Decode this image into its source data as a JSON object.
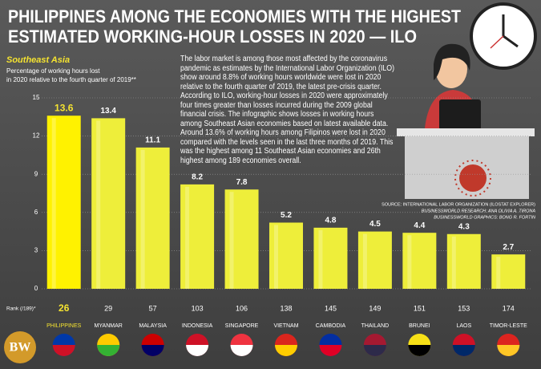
{
  "chart_data": {
    "type": "bar",
    "title": [
      "PHILIPPINES AMONG THE ECONOMIES WITH THE HIGHEST",
      "ESTIMATED WORKING-HOUR LOSSES IN 2020  — ILO"
    ],
    "subtitle": "Southeast Asia",
    "y_label": [
      "Percentage of working hours lost",
      "in 2020 relative to the fourth quarter of 2019**"
    ],
    "description": "The labor market is among those most affected by the coronavirus pandemic as estimates by the International Labor Organization (ILO) show around 8.8% of working hours worldwide were lost in 2020 relative to the fourth quarter of 2019, the latest pre-crisis quarter. According to ILO, working-hour losses in 2020 were approximately four times greater than losses incurred during the 2009 global financial crisis. The infographic shows losses in working hours among Southeast Asian economies based on latest available data. Around 13.6% of working hours among Filipinos were lost in 2020 compared with the levels seen in the last three months of 2019. This was the highest among 11 Southeast Asian economies and 26th highest among 189 economies overall.",
    "sources": [
      "SOURCE: INTERNATIONAL LABOR ORGANIZATION (ILOSTAT EXPLORER)",
      "BUSINESSWORLD RESEARCH: ANA OLIVIA A. TIRONA",
      "BUSINESSWORLD GRAPHICS: BONG R. FORTIN"
    ],
    "logo": "BW",
    "rank_label": "Rank (/189)*",
    "categories": [
      "PHILIPPINES",
      "MYANMAR",
      "MALAYSIA",
      "INDONESIA",
      "SINGAPORE",
      "VIETNAM",
      "CAMBODIA",
      "THAILAND",
      "BRUNEI",
      "LAOS",
      "TIMOR-LESTE"
    ],
    "values": [
      13.6,
      13.4,
      11.1,
      8.2,
      7.8,
      5.2,
      4.8,
      4.5,
      4.4,
      4.3,
      2.7
    ],
    "ranks": [
      26,
      29,
      57,
      103,
      106,
      138,
      145,
      149,
      151,
      153,
      174
    ],
    "color": "#eeee3a",
    "highlight_color": "#fff200",
    "ylim": [
      0,
      15
    ],
    "yticks": [
      0,
      3,
      6,
      9,
      12,
      15
    ],
    "grid": true
  }
}
